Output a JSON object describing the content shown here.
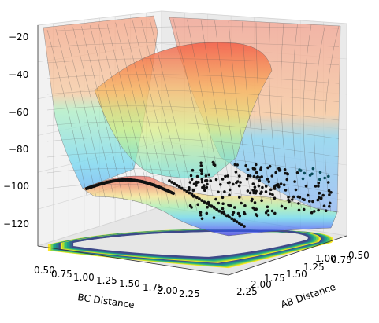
{
  "chart_data": {
    "type": "surface3d",
    "title": "",
    "xlabel": "BC Distance",
    "ylabel": "AB Distance",
    "zlabel": "",
    "x_ticks": [
      "0.50",
      "0.75",
      "1.00",
      "1.25",
      "1.50",
      "1.75",
      "2.00",
      "2.25"
    ],
    "y_ticks": [
      "2.25",
      "2.00",
      "1.75",
      "1.50",
      "1.25",
      "1.00",
      "0.75",
      "0.50"
    ],
    "z_ticks": [
      "−20",
      "−40",
      "−60",
      "−80",
      "−100",
      "−120"
    ],
    "xlim": [
      0.5,
      2.3
    ],
    "ylim": [
      0.5,
      2.3
    ],
    "zlim": [
      -135,
      -18
    ],
    "surface_colormap": "jet",
    "contour_colormap": "viridis",
    "scatter_color": "#000000",
    "grid": true,
    "surface_profile": {
      "description_points_bc": [
        0.5,
        0.7,
        0.9,
        1.1,
        1.3,
        1.5,
        1.7,
        1.9,
        2.1,
        2.3
      ],
      "min_path_energy": [
        -101,
        -98,
        -96,
        -95.5,
        -97,
        -103,
        -108,
        -112,
        -115,
        -118
      ]
    }
  }
}
